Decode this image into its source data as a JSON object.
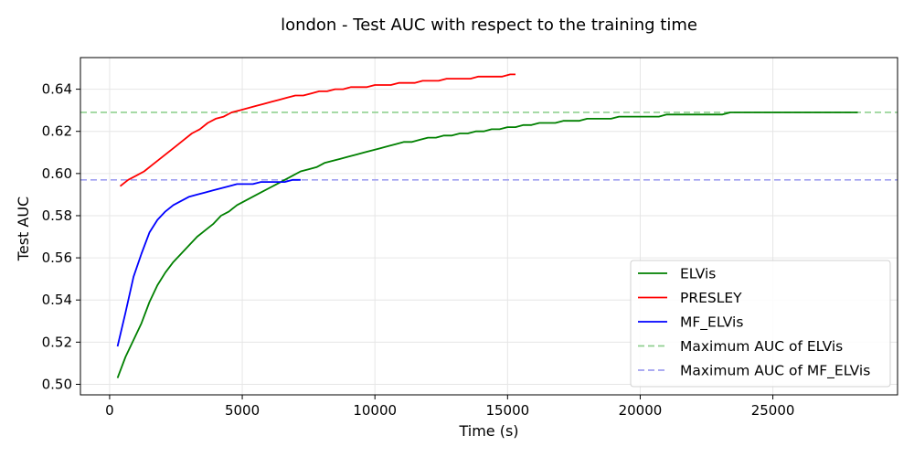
{
  "chart_data": {
    "type": "line",
    "title": "london - Test AUC with respect to the training time",
    "xlabel": "Time (s)",
    "ylabel": "Test AUC",
    "xlim": [
      -1100,
      29700
    ],
    "ylim": [
      0.495,
      0.655
    ],
    "xticks": [
      0,
      5000,
      10000,
      15000,
      20000,
      25000
    ],
    "yticks": [
      0.5,
      0.52,
      0.54,
      0.56,
      0.58,
      0.6,
      0.62,
      0.64
    ],
    "grid": true,
    "legend_position": "lower-right",
    "series": [
      {
        "name": "ELVis",
        "color": "#008000",
        "style": "solid",
        "x": [
          300,
          600,
          900,
          1200,
          1500,
          1800,
          2100,
          2400,
          2700,
          3000,
          3300,
          3600,
          3900,
          4200,
          4500,
          4800,
          5100,
          5400,
          5700,
          6000,
          6300,
          6600,
          6900,
          7200,
          7500,
          7800,
          8100,
          8400,
          8700,
          9000,
          9300,
          9600,
          9900,
          10200,
          10500,
          10800,
          11100,
          11400,
          11700,
          12000,
          12300,
          12600,
          12900,
          13200,
          13500,
          13800,
          14100,
          14400,
          14700,
          15000,
          15300,
          15600,
          15900,
          16200,
          16500,
          16800,
          17100,
          17400,
          17700,
          18000,
          18300,
          18600,
          18900,
          19200,
          19500,
          19800,
          20100,
          20400,
          20700,
          21000,
          21300,
          21600,
          21900,
          22200,
          22500,
          22800,
          23100,
          23400,
          23700,
          24000,
          24300,
          24600,
          24900,
          25200,
          25500,
          25800,
          26100,
          26400,
          26700,
          27000,
          27300,
          27600,
          27900,
          28200
        ],
        "y": [
          0.503,
          0.513,
          0.521,
          0.529,
          0.539,
          0.547,
          0.553,
          0.558,
          0.562,
          0.566,
          0.57,
          0.573,
          0.576,
          0.58,
          0.582,
          0.585,
          0.587,
          0.589,
          0.591,
          0.593,
          0.595,
          0.597,
          0.599,
          0.601,
          0.602,
          0.603,
          0.605,
          0.606,
          0.607,
          0.608,
          0.609,
          0.61,
          0.611,
          0.612,
          0.613,
          0.614,
          0.615,
          0.615,
          0.616,
          0.617,
          0.617,
          0.618,
          0.618,
          0.619,
          0.619,
          0.62,
          0.62,
          0.621,
          0.621,
          0.622,
          0.622,
          0.623,
          0.623,
          0.624,
          0.624,
          0.624,
          0.625,
          0.625,
          0.625,
          0.626,
          0.626,
          0.626,
          0.626,
          0.627,
          0.627,
          0.627,
          0.627,
          0.627,
          0.627,
          0.628,
          0.628,
          0.628,
          0.628,
          0.628,
          0.628,
          0.628,
          0.628,
          0.629,
          0.629,
          0.629,
          0.629,
          0.629,
          0.629,
          0.629,
          0.629,
          0.629,
          0.629,
          0.629,
          0.629,
          0.629,
          0.629,
          0.629,
          0.629,
          0.629
        ]
      },
      {
        "name": "PRESLEY",
        "color": "#ff0000",
        "style": "solid",
        "x": [
          400,
          700,
          1000,
          1300,
          1600,
          1900,
          2200,
          2500,
          2800,
          3100,
          3400,
          3700,
          4000,
          4300,
          4600,
          4900,
          5200,
          5500,
          5800,
          6100,
          6400,
          6700,
          7000,
          7300,
          7600,
          7900,
          8200,
          8500,
          8800,
          9100,
          9400,
          9700,
          10000,
          10300,
          10600,
          10900,
          11200,
          11500,
          11800,
          12100,
          12400,
          12700,
          13000,
          13300,
          13600,
          13900,
          14200,
          14500,
          14800,
          15100,
          15300
        ],
        "y": [
          0.594,
          0.597,
          0.599,
          0.601,
          0.604,
          0.607,
          0.61,
          0.613,
          0.616,
          0.619,
          0.621,
          0.624,
          0.626,
          0.627,
          0.629,
          0.63,
          0.631,
          0.632,
          0.633,
          0.634,
          0.635,
          0.636,
          0.637,
          0.637,
          0.638,
          0.639,
          0.639,
          0.64,
          0.64,
          0.641,
          0.641,
          0.641,
          0.642,
          0.642,
          0.642,
          0.643,
          0.643,
          0.643,
          0.644,
          0.644,
          0.644,
          0.645,
          0.645,
          0.645,
          0.645,
          0.646,
          0.646,
          0.646,
          0.646,
          0.647,
          0.647
        ]
      },
      {
        "name": "MF_ELVis",
        "color": "#0000ff",
        "style": "solid",
        "x": [
          300,
          600,
          900,
          1200,
          1500,
          1800,
          2100,
          2400,
          2700,
          3000,
          3300,
          3600,
          3900,
          4200,
          4500,
          4800,
          5100,
          5400,
          5700,
          6000,
          6300,
          6600,
          6900,
          7200
        ],
        "y": [
          0.518,
          0.534,
          0.551,
          0.562,
          0.572,
          0.578,
          0.582,
          0.585,
          0.587,
          0.589,
          0.59,
          0.591,
          0.592,
          0.593,
          0.594,
          0.595,
          0.595,
          0.595,
          0.596,
          0.596,
          0.596,
          0.596,
          0.597,
          0.597
        ]
      },
      {
        "name": "Maximum AUC of ELVis",
        "color": "#90d090",
        "style": "dashed",
        "constant_y": 0.629
      },
      {
        "name": "Maximum AUC of MF_ELVis",
        "color": "#a0a0f0",
        "style": "dashed",
        "constant_y": 0.597
      }
    ]
  }
}
